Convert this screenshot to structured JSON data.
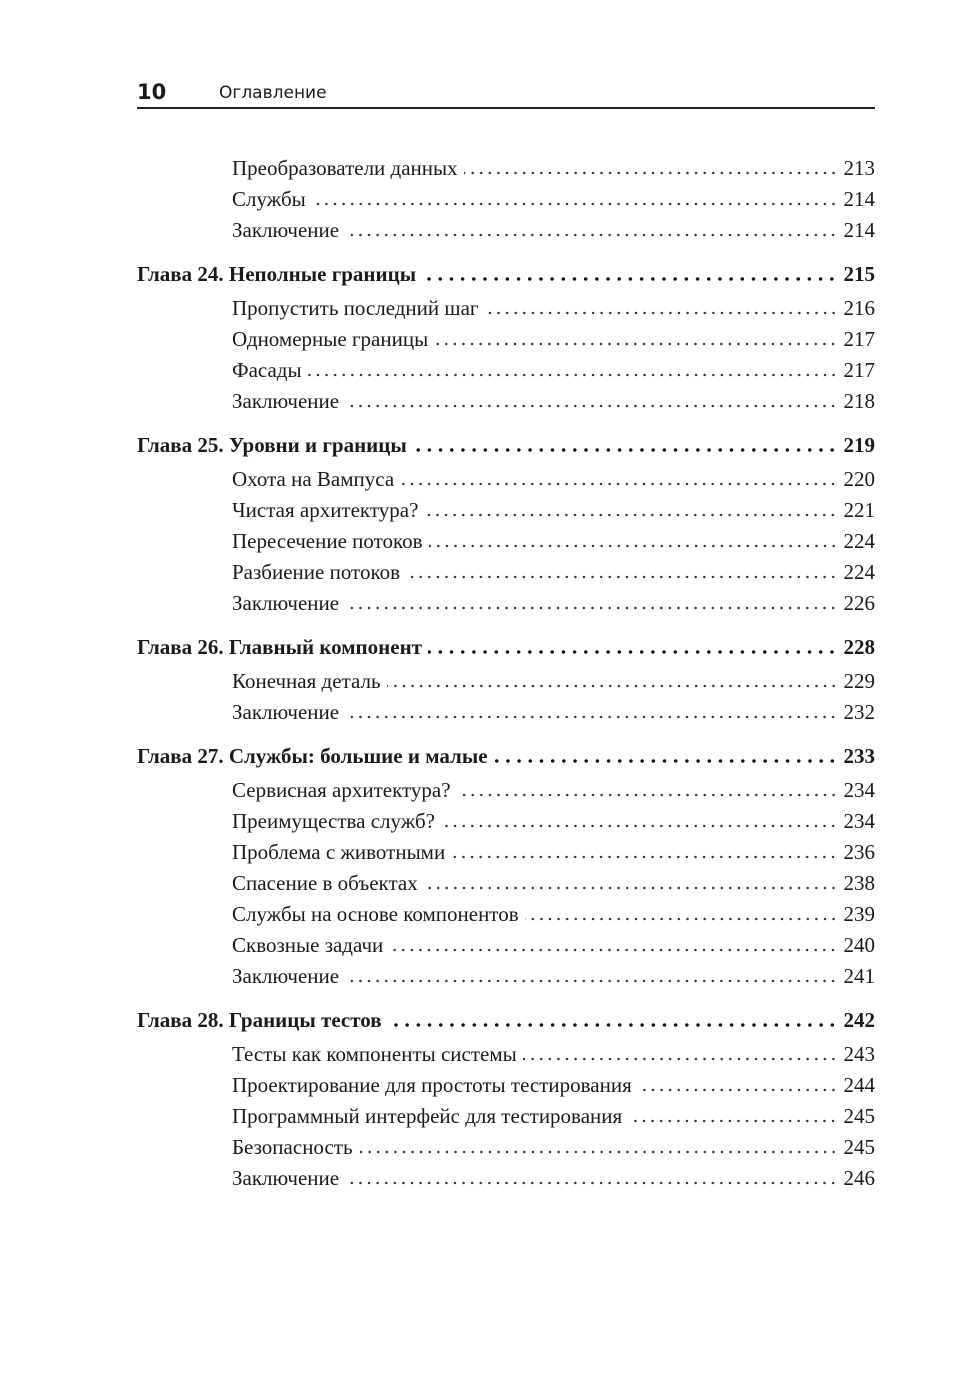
{
  "header": {
    "page_number": "10",
    "title": "Оглавление"
  },
  "toc": [
    {
      "level": "sub",
      "title": "Преобразователи данных",
      "page": "213"
    },
    {
      "level": "sub",
      "title": "Службы",
      "page": "214"
    },
    {
      "level": "sub",
      "title": "Заключение",
      "page": "214"
    },
    {
      "level": "chapter",
      "title": "Глава 24. Неполные границы",
      "page": "215"
    },
    {
      "level": "sub",
      "title": "Пропустить последний шаг",
      "page": "216"
    },
    {
      "level": "sub",
      "title": "Одномерные границы",
      "page": "217"
    },
    {
      "level": "sub",
      "title": "Фасады",
      "page": "217"
    },
    {
      "level": "sub",
      "title": "Заключение",
      "page": "218"
    },
    {
      "level": "chapter",
      "title": "Глава 25. Уровни и границы",
      "page": "219"
    },
    {
      "level": "sub",
      "title": "Охота на Вампуса",
      "page": "220"
    },
    {
      "level": "sub",
      "title": "Чистая архитектура?",
      "page": "221"
    },
    {
      "level": "sub",
      "title": "Пересечение потоков",
      "page": "224"
    },
    {
      "level": "sub",
      "title": "Разбиение потоков",
      "page": "224"
    },
    {
      "level": "sub",
      "title": "Заключение",
      "page": "226"
    },
    {
      "level": "chapter",
      "title": "Глава 26. Главный компонент",
      "page": "228"
    },
    {
      "level": "sub",
      "title": "Конечная деталь",
      "page": "229"
    },
    {
      "level": "sub",
      "title": "Заключение",
      "page": "232"
    },
    {
      "level": "chapter",
      "title": "Глава 27. Службы: большие и малые",
      "page": "233"
    },
    {
      "level": "sub",
      "title": "Сервисная архитектура?",
      "page": "234"
    },
    {
      "level": "sub",
      "title": "Преимущества служб?",
      "page": "234"
    },
    {
      "level": "sub",
      "title": "Проблема с животными",
      "page": "236"
    },
    {
      "level": "sub",
      "title": "Спасение в объектах",
      "page": "238"
    },
    {
      "level": "sub",
      "title": "Службы на основе компонентов",
      "page": "239"
    },
    {
      "level": "sub",
      "title": "Сквозные задачи",
      "page": "240"
    },
    {
      "level": "sub",
      "title": "Заключение",
      "page": "241"
    },
    {
      "level": "chapter",
      "title": "Глава 28. Границы тестов",
      "page": "242"
    },
    {
      "level": "sub",
      "title": "Тесты как компоненты системы",
      "page": "243"
    },
    {
      "level": "sub",
      "title": "Проектирование для простоты тестирования",
      "page": "244"
    },
    {
      "level": "sub",
      "title": "Программный интерфейс для тестирования",
      "page": "245"
    },
    {
      "level": "sub",
      "title": "Безопасность",
      "page": "245"
    },
    {
      "level": "sub",
      "title": "Заключение",
      "page": "246"
    }
  ]
}
